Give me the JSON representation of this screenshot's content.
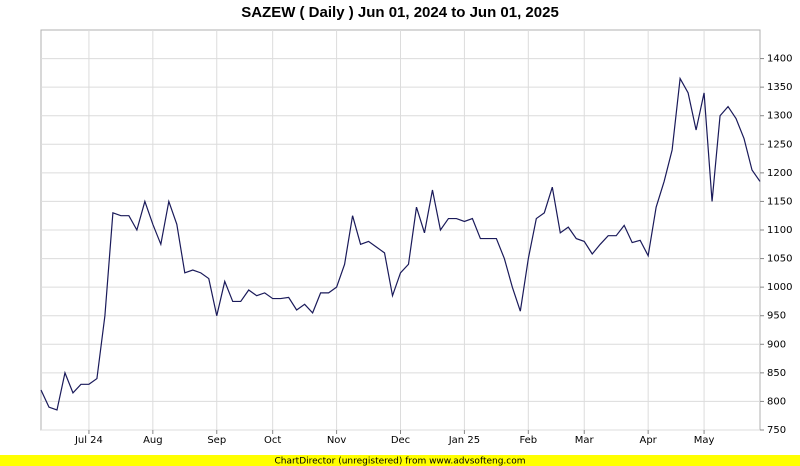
{
  "chart_data": {
    "type": "line",
    "title": "SAZEW ( Daily ) Jun 01, 2024 to Jun 01, 2025",
    "footer": "ChartDirector (unregistered) from www.advsofteng.com",
    "color": "#1a1a5a",
    "grid": true,
    "categories": [
      null,
      null,
      null,
      null,
      null,
      null,
      "Jul 24",
      null,
      null,
      null,
      null,
      null,
      null,
      null,
      "Aug",
      null,
      null,
      null,
      null,
      null,
      null,
      null,
      "Sep",
      null,
      null,
      null,
      null,
      null,
      null,
      "Oct",
      null,
      null,
      null,
      null,
      null,
      null,
      null,
      "Nov",
      null,
      null,
      null,
      null,
      null,
      null,
      null,
      "Dec",
      null,
      null,
      null,
      null,
      null,
      null,
      null,
      "Jan 25",
      null,
      null,
      null,
      null,
      null,
      null,
      null,
      "Feb",
      null,
      null,
      null,
      null,
      null,
      null,
      "Mar",
      null,
      null,
      null,
      null,
      null,
      null,
      null,
      "Apr",
      null,
      null,
      null,
      null,
      null,
      null,
      "May",
      null,
      null,
      null,
      null,
      null,
      null,
      null
    ],
    "values": [
      820,
      790,
      785,
      850,
      815,
      830,
      830,
      840,
      950,
      1130,
      1125,
      1125,
      1100,
      1150,
      1110,
      1075,
      1150,
      1110,
      1025,
      1030,
      1025,
      1015,
      950,
      1010,
      975,
      975,
      995,
      985,
      990,
      980,
      980,
      982,
      960,
      970,
      955,
      990,
      990,
      1000,
      1040,
      1125,
      1075,
      1080,
      1070,
      1060,
      985,
      1025,
      1040,
      1140,
      1095,
      1170,
      1100,
      1120,
      1120,
      1115,
      1120,
      1085,
      1085,
      1085,
      1050,
      1000,
      958,
      1050,
      1120,
      1130,
      1175,
      1095,
      1105,
      1085,
      1080,
      1058,
      1075,
      1090,
      1090,
      1108,
      1078,
      1082,
      1055,
      1140,
      1185,
      1240,
      1365,
      1340,
      1275,
      1340,
      1150,
      1300,
      1316,
      1295,
      1260,
      1205,
      1185
    ],
    "ylim": [
      750,
      1450
    ],
    "yticks": [
      750,
      800,
      850,
      900,
      950,
      1000,
      1050,
      1100,
      1150,
      1200,
      1250,
      1300,
      1350,
      1400
    ]
  }
}
